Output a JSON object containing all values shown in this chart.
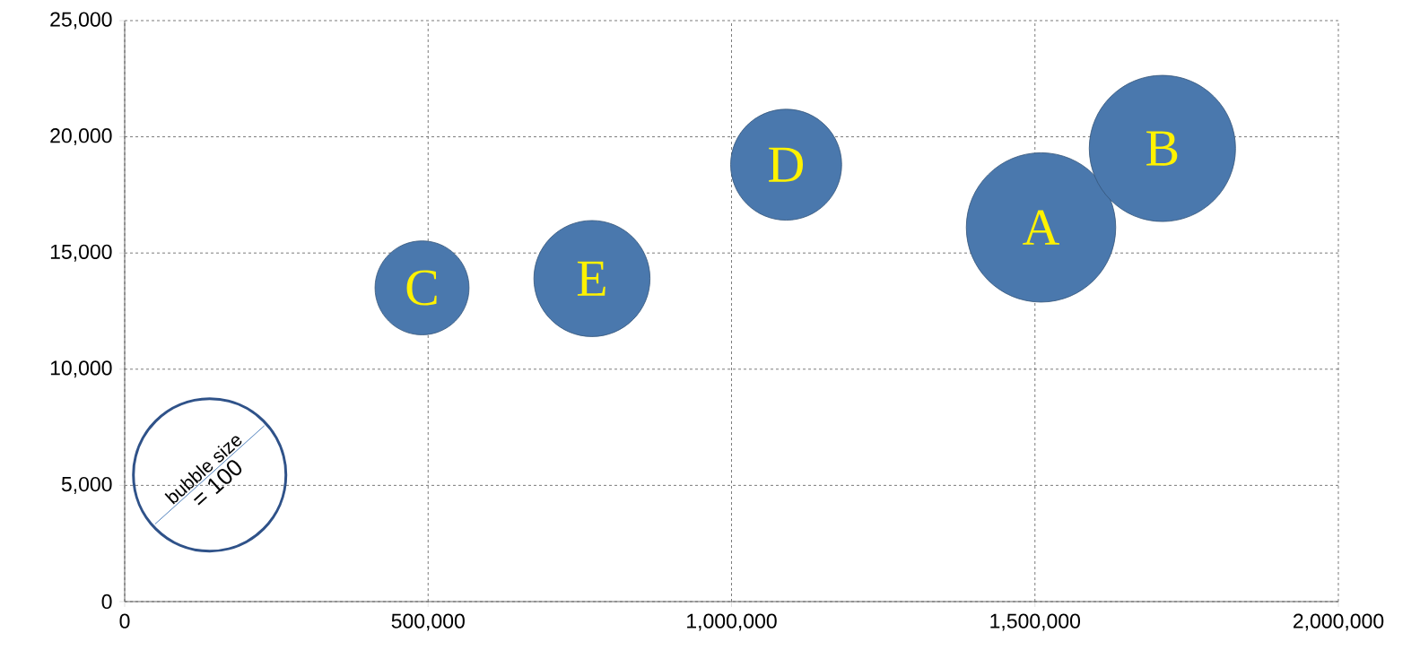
{
  "chart_data": {
    "type": "bubble",
    "x": [
      1510000,
      1710000,
      490000,
      1090000,
      770000
    ],
    "values": [
      16100,
      19500,
      13500,
      18800,
      13900
    ],
    "sizes": [
      96,
      92,
      38,
      53,
      58
    ],
    "size_legend": [
      100
    ],
    "color": "#4a78ad",
    "grid": true,
    "xlim": [
      0,
      2000000
    ],
    "ylim": [
      0,
      25000
    ],
    "xticks": [
      0,
      {
        "value": 500000,
        "label": "500,000"
      },
      {
        "value": 1000000,
        "label": "1,000,000"
      },
      {
        "value": 1500000,
        "label": "1,500,000"
      },
      {
        "value": 2000000,
        "label": "2,000,000"
      }
    ],
    "yticks": [
      0,
      {
        "value": 5000,
        "label": "5,000"
      },
      {
        "value": 10000,
        "label": "10,000"
      },
      {
        "value": 15000,
        "label": "15,000"
      },
      {
        "value": 20000,
        "label": "20,000"
      },
      {
        "value": 25000,
        "label": "25,000"
      }
    ],
    "annotations": [
      {
        "text": "A",
        "x": 1510000,
        "y": 16100
      },
      {
        "text": "B",
        "x": 1710000,
        "y": 19500
      },
      {
        "text": "C",
        "x": 490000,
        "y": 13500
      },
      {
        "text": "D",
        "x": 1090000,
        "y": 18800
      },
      {
        "text": "E",
        "x": 770000,
        "y": 13900
      },
      "bubble size",
      "="
    ]
  }
}
